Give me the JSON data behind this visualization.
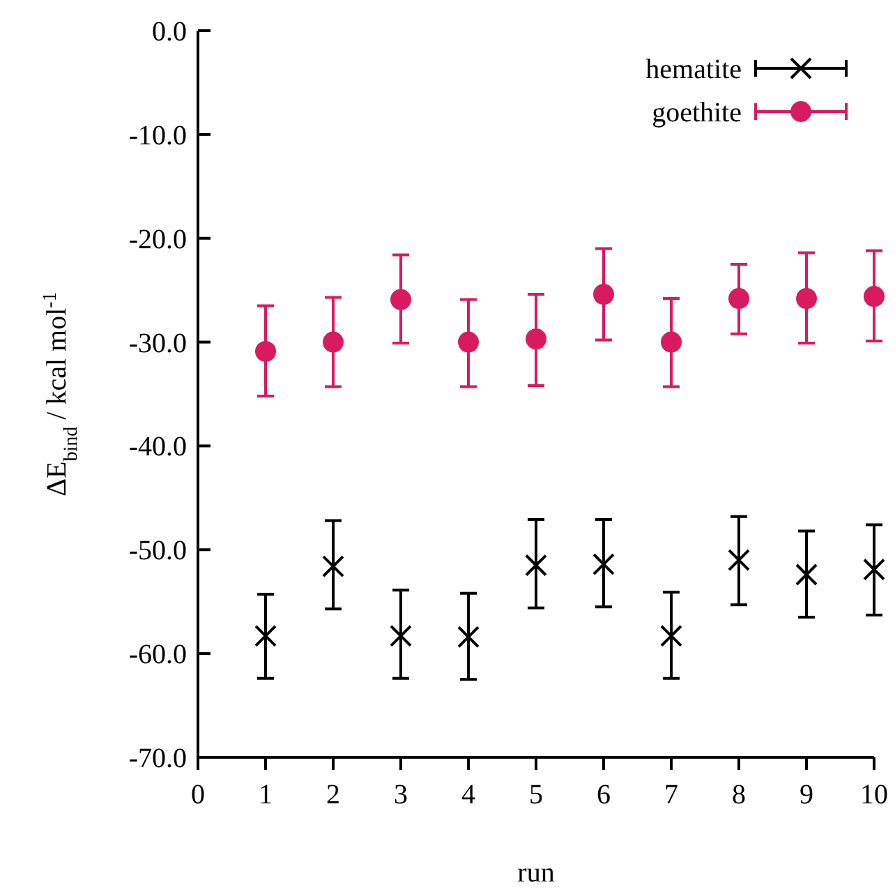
{
  "chart_data": {
    "type": "scatter",
    "xlabel": "run",
    "ylabel": "ΔE$_{bind}$ / kcal mol$^{-1}$",
    "x": [
      1,
      2,
      3,
      4,
      5,
      6,
      7,
      8,
      9,
      10
    ],
    "xlim": [
      0,
      10
    ],
    "xticks": [
      0,
      1,
      2,
      3,
      4,
      5,
      6,
      7,
      8,
      9,
      10
    ],
    "ylim": [
      -70,
      0
    ],
    "yticks": [
      {
        "value": -70,
        "label": "-70.0"
      },
      {
        "value": -60,
        "label": "-60.0"
      },
      {
        "value": -50,
        "label": "-50.0"
      },
      {
        "value": -40,
        "label": "-40.0"
      },
      {
        "value": -30,
        "label": "-30.0"
      },
      {
        "value": -20,
        "label": "-20.0"
      },
      {
        "value": -10,
        "label": "-10.0"
      },
      {
        "value": 0,
        "label": "0.0"
      }
    ],
    "grid": false,
    "legend": "top right",
    "series": [
      {
        "name": "hematite",
        "color": "#000000",
        "marker": "cross",
        "values": [
          -58.3,
          -51.6,
          -58.3,
          -58.4,
          -51.5,
          -51.4,
          -58.3,
          -51.0,
          -52.4,
          -51.9
        ],
        "errors": [
          [
            -62.4,
            -54.3
          ],
          [
            -55.7,
            -47.2
          ],
          [
            -62.4,
            -53.9
          ],
          [
            -62.5,
            -54.2
          ],
          [
            -55.6,
            -47.1
          ],
          [
            -55.5,
            -47.1
          ],
          [
            -62.4,
            -54.1
          ],
          [
            -55.3,
            -46.8
          ],
          [
            -56.5,
            -48.2
          ],
          [
            -56.3,
            -47.6
          ]
        ]
      },
      {
        "name": "goethite",
        "color": "#d81b60",
        "marker": "circle",
        "values": [
          -30.9,
          -30.0,
          -25.9,
          -30.0,
          -29.7,
          -25.4,
          -30.0,
          -25.8,
          -25.8,
          -25.6
        ],
        "errors": [
          [
            -35.2,
            -26.5
          ],
          [
            -34.3,
            -25.7
          ],
          [
            -30.1,
            -21.6
          ],
          [
            -34.3,
            -25.9
          ],
          [
            -34.2,
            -25.4
          ],
          [
            -29.8,
            -21.0
          ],
          [
            -34.3,
            -25.8
          ],
          [
            -29.2,
            -22.5
          ],
          [
            -30.1,
            -21.4
          ],
          [
            -29.9,
            -21.2
          ]
        ]
      }
    ]
  }
}
